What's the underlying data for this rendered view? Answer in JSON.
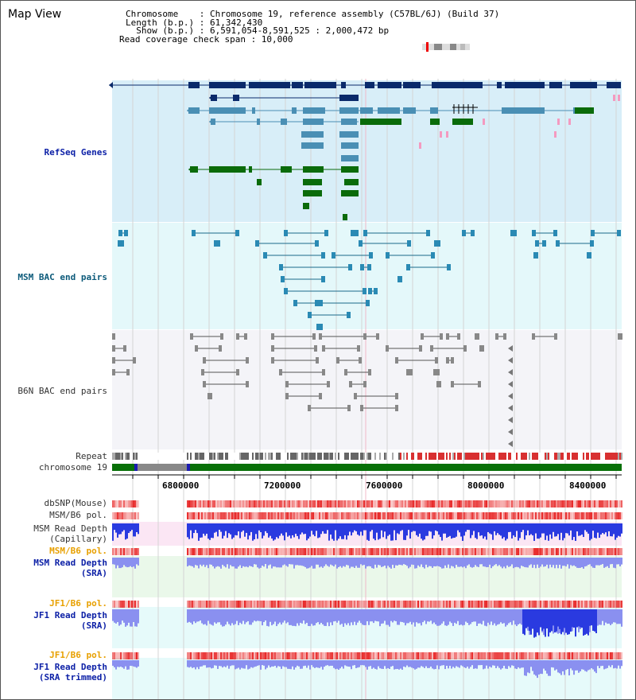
{
  "view": {
    "title": "Map View",
    "info_lines": [
      "Chromosome    : Chromosome 19, reference assembly (C57BL/6J) (Build 37)",
      "Length (b.p.) : 61,342,430",
      "  Show (b.p.) : 6,591,054-8,591,525 : 2,000,472 bp",
      "Read coverage check span : 10,000"
    ]
  },
  "tracks": {
    "refseq": "RefSeq Genes",
    "msm_bac": "MSM BAC end pairs",
    "b6n_bac": "B6N BAC end pairs",
    "repeat": "Repeat",
    "chromosome": "chromosome 19",
    "dbsnp": "dbSNP(Mouse)",
    "msm_pol1": "MSM/B6 pol.",
    "msm_depth_cap": "MSM Read Depth\n(Capillary)",
    "msm_pol2": "MSM/B6 pol.",
    "msm_depth_sra": "MSM Read Depth\n(SRA)",
    "jf1_pol1": "JF1/B6 pol.",
    "jf1_depth_sra": "JF1 Read Depth\n(SRA)",
    "jf1_pol2": "JF1/B6 pol.",
    "jf1_depth_trim": "JF1 Read Depth\n(SRA trimmed)"
  },
  "axis": {
    "ticks": [
      "6800000",
      "7200000",
      "7600000",
      "8000000",
      "8400000"
    ]
  },
  "colors": {
    "refseq_bg": "#d8eef8",
    "msm_bg": "#e4f8fa",
    "b6n_bg": "#f4f4f8",
    "gene_navy": "#0a2a6b",
    "gene_steel": "#4a8fb4",
    "gene_green": "#0a6b0a",
    "chrom_green": "#087008",
    "pol_red": "#e84040",
    "depth_blue": "#2a3ae0",
    "depth_light": "#8a90f0"
  }
}
